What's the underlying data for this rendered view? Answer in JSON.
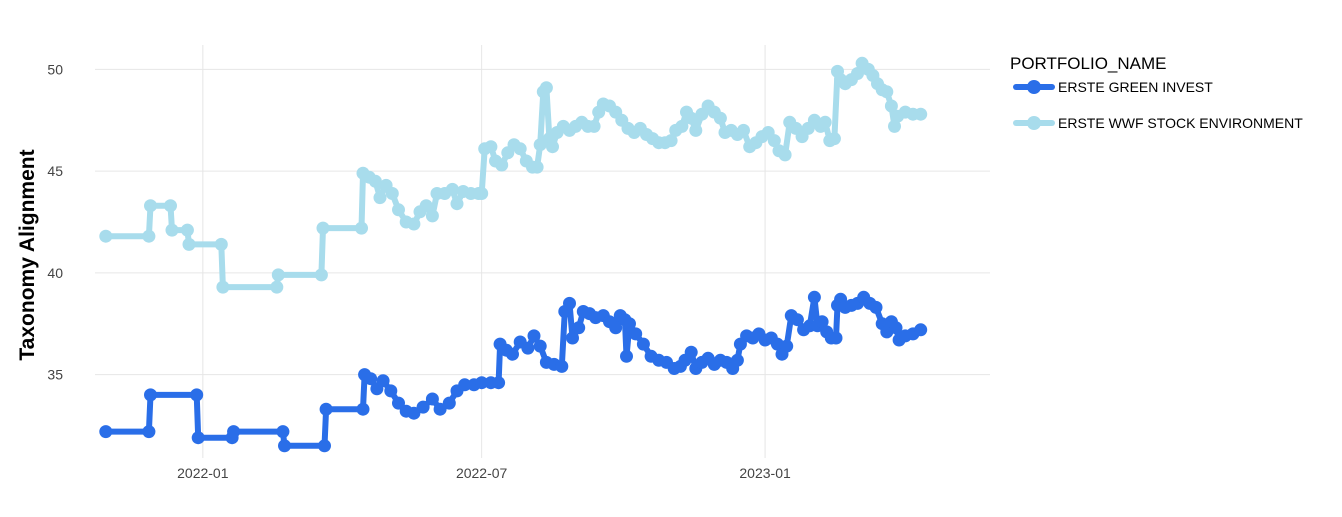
{
  "chart_data": {
    "type": "line",
    "title": "",
    "xlabel": "",
    "ylabel": "Taxonomy Alignment",
    "legend_title": "PORTFOLIO_NAME",
    "legend_position": "right",
    "grid": true,
    "ylim": [
      30.9,
      51.2
    ],
    "xlim": [
      "2021-10-23",
      "2023-05-27"
    ],
    "x_ticks": [
      {
        "label": "2022-01",
        "date": "2022-01-01"
      },
      {
        "label": "2022-07",
        "date": "2022-07-01"
      },
      {
        "label": "2023-01",
        "date": "2023-01-01"
      }
    ],
    "y_ticks": [
      35,
      40,
      45,
      50
    ],
    "series": [
      {
        "name": "ERSTE GREEN INVEST",
        "color": "#2a6ee8",
        "points": [
          [
            "2021-10-30",
            32.2
          ],
          [
            "2021-11-27",
            32.2
          ],
          [
            "2021-11-28",
            34.0
          ],
          [
            "2021-12-28",
            34.0
          ],
          [
            "2021-12-29",
            31.9
          ],
          [
            "2022-01-20",
            31.9
          ],
          [
            "2022-01-21",
            32.2
          ],
          [
            "2022-02-22",
            32.2
          ],
          [
            "2022-02-23",
            31.5
          ],
          [
            "2022-03-21",
            31.5
          ],
          [
            "2022-03-22",
            33.3
          ],
          [
            "2022-04-15",
            33.3
          ],
          [
            "2022-04-16",
            35.0
          ],
          [
            "2022-04-20",
            34.8
          ],
          [
            "2022-04-24",
            34.3
          ],
          [
            "2022-04-28",
            34.7
          ],
          [
            "2022-05-03",
            34.2
          ],
          [
            "2022-05-08",
            33.6
          ],
          [
            "2022-05-13",
            33.2
          ],
          [
            "2022-05-18",
            33.1
          ],
          [
            "2022-05-24",
            33.4
          ],
          [
            "2022-05-30",
            33.8
          ],
          [
            "2022-06-04",
            33.3
          ],
          [
            "2022-06-10",
            33.6
          ],
          [
            "2022-06-15",
            34.2
          ],
          [
            "2022-06-20",
            34.5
          ],
          [
            "2022-06-26",
            34.5
          ],
          [
            "2022-07-01",
            34.6
          ],
          [
            "2022-07-07",
            34.6
          ],
          [
            "2022-07-12",
            34.6
          ],
          [
            "2022-07-13",
            36.5
          ],
          [
            "2022-07-17",
            36.2
          ],
          [
            "2022-07-21",
            36.0
          ],
          [
            "2022-07-26",
            36.6
          ],
          [
            "2022-07-31",
            36.3
          ],
          [
            "2022-08-04",
            36.9
          ],
          [
            "2022-08-08",
            36.4
          ],
          [
            "2022-08-12",
            35.6
          ],
          [
            "2022-08-17",
            35.5
          ],
          [
            "2022-08-22",
            35.4
          ],
          [
            "2022-08-24",
            38.1
          ],
          [
            "2022-08-27",
            38.5
          ],
          [
            "2022-08-29",
            36.8
          ],
          [
            "2022-09-02",
            37.3
          ],
          [
            "2022-09-05",
            38.1
          ],
          [
            "2022-09-09",
            38.0
          ],
          [
            "2022-09-13",
            37.8
          ],
          [
            "2022-09-18",
            37.9
          ],
          [
            "2022-09-22",
            37.6
          ],
          [
            "2022-09-26",
            37.3
          ],
          [
            "2022-09-29",
            37.9
          ],
          [
            "2022-10-02",
            37.7
          ],
          [
            "2022-10-03",
            35.9
          ],
          [
            "2022-10-05",
            37.5
          ],
          [
            "2022-10-09",
            37.0
          ],
          [
            "2022-10-14",
            36.5
          ],
          [
            "2022-10-19",
            35.9
          ],
          [
            "2022-10-24",
            35.7
          ],
          [
            "2022-10-29",
            35.6
          ],
          [
            "2022-11-03",
            35.3
          ],
          [
            "2022-11-07",
            35.4
          ],
          [
            "2022-11-10",
            35.7
          ],
          [
            "2022-11-14",
            36.1
          ],
          [
            "2022-11-17",
            35.3
          ],
          [
            "2022-11-21",
            35.6
          ],
          [
            "2022-11-25",
            35.8
          ],
          [
            "2022-11-29",
            35.5
          ],
          [
            "2022-12-03",
            35.7
          ],
          [
            "2022-12-07",
            35.6
          ],
          [
            "2022-12-11",
            35.3
          ],
          [
            "2022-12-14",
            35.7
          ],
          [
            "2022-12-16",
            36.5
          ],
          [
            "2022-12-20",
            36.9
          ],
          [
            "2022-12-24",
            36.8
          ],
          [
            "2022-12-28",
            37.0
          ],
          [
            "2023-01-01",
            36.7
          ],
          [
            "2023-01-05",
            36.8
          ],
          [
            "2023-01-09",
            36.5
          ],
          [
            "2023-01-12",
            36.0
          ],
          [
            "2023-01-15",
            36.4
          ],
          [
            "2023-01-18",
            37.9
          ],
          [
            "2023-01-22",
            37.7
          ],
          [
            "2023-01-26",
            37.2
          ],
          [
            "2023-01-30",
            37.4
          ],
          [
            "2023-02-02",
            38.8
          ],
          [
            "2023-02-04",
            37.4
          ],
          [
            "2023-02-07",
            37.6
          ],
          [
            "2023-02-10",
            37.1
          ],
          [
            "2023-02-13",
            36.8
          ],
          [
            "2023-02-16",
            36.8
          ],
          [
            "2023-02-17",
            38.4
          ],
          [
            "2023-02-19",
            38.7
          ],
          [
            "2023-02-22",
            38.3
          ],
          [
            "2023-02-26",
            38.4
          ],
          [
            "2023-03-02",
            38.5
          ],
          [
            "2023-03-06",
            38.8
          ],
          [
            "2023-03-10",
            38.5
          ],
          [
            "2023-03-14",
            38.3
          ],
          [
            "2023-03-18",
            37.5
          ],
          [
            "2023-03-21",
            37.1
          ],
          [
            "2023-03-24",
            37.6
          ],
          [
            "2023-03-27",
            37.3
          ],
          [
            "2023-03-29",
            36.7
          ],
          [
            "2023-04-02",
            36.9
          ],
          [
            "2023-04-07",
            37.0
          ],
          [
            "2023-04-12",
            37.2
          ]
        ]
      },
      {
        "name": "ERSTE WWF STOCK ENVIRONMENT",
        "color": "#a8dcec",
        "points": [
          [
            "2021-10-30",
            41.8
          ],
          [
            "2021-11-27",
            41.8
          ],
          [
            "2021-11-28",
            43.3
          ],
          [
            "2021-12-11",
            43.3
          ],
          [
            "2021-12-12",
            42.1
          ],
          [
            "2021-12-22",
            42.1
          ],
          [
            "2021-12-23",
            41.4
          ],
          [
            "2022-01-13",
            41.4
          ],
          [
            "2022-01-14",
            39.3
          ],
          [
            "2022-02-18",
            39.3
          ],
          [
            "2022-02-19",
            39.9
          ],
          [
            "2022-03-19",
            39.9
          ],
          [
            "2022-03-20",
            42.2
          ],
          [
            "2022-04-14",
            42.2
          ],
          [
            "2022-04-15",
            44.9
          ],
          [
            "2022-04-19",
            44.7
          ],
          [
            "2022-04-23",
            44.5
          ],
          [
            "2022-04-26",
            43.7
          ],
          [
            "2022-04-30",
            44.3
          ],
          [
            "2022-05-04",
            43.9
          ],
          [
            "2022-05-08",
            43.1
          ],
          [
            "2022-05-13",
            42.5
          ],
          [
            "2022-05-18",
            42.4
          ],
          [
            "2022-05-22",
            43.0
          ],
          [
            "2022-05-26",
            43.3
          ],
          [
            "2022-05-30",
            42.8
          ],
          [
            "2022-06-02",
            43.9
          ],
          [
            "2022-06-07",
            43.9
          ],
          [
            "2022-06-12",
            44.1
          ],
          [
            "2022-06-15",
            43.4
          ],
          [
            "2022-06-19",
            44.0
          ],
          [
            "2022-06-24",
            43.9
          ],
          [
            "2022-06-29",
            43.9
          ],
          [
            "2022-07-01",
            43.9
          ],
          [
            "2022-07-03",
            46.1
          ],
          [
            "2022-07-07",
            46.2
          ],
          [
            "2022-07-10",
            45.5
          ],
          [
            "2022-07-14",
            45.3
          ],
          [
            "2022-07-18",
            45.9
          ],
          [
            "2022-07-22",
            46.3
          ],
          [
            "2022-07-26",
            46.1
          ],
          [
            "2022-07-30",
            45.5
          ],
          [
            "2022-08-03",
            45.2
          ],
          [
            "2022-08-06",
            45.2
          ],
          [
            "2022-08-08",
            46.3
          ],
          [
            "2022-08-10",
            48.9
          ],
          [
            "2022-08-12",
            49.1
          ],
          [
            "2022-08-14",
            46.6
          ],
          [
            "2022-08-16",
            46.2
          ],
          [
            "2022-08-19",
            46.9
          ],
          [
            "2022-08-23",
            47.2
          ],
          [
            "2022-08-27",
            47.0
          ],
          [
            "2022-08-31",
            47.2
          ],
          [
            "2022-09-04",
            47.4
          ],
          [
            "2022-09-08",
            47.2
          ],
          [
            "2022-09-12",
            47.2
          ],
          [
            "2022-09-15",
            47.9
          ],
          [
            "2022-09-18",
            48.3
          ],
          [
            "2022-09-22",
            48.2
          ],
          [
            "2022-09-26",
            47.9
          ],
          [
            "2022-09-30",
            47.5
          ],
          [
            "2022-10-04",
            47.1
          ],
          [
            "2022-10-08",
            46.9
          ],
          [
            "2022-10-12",
            47.1
          ],
          [
            "2022-10-16",
            46.8
          ],
          [
            "2022-10-20",
            46.6
          ],
          [
            "2022-10-24",
            46.4
          ],
          [
            "2022-10-28",
            46.4
          ],
          [
            "2022-11-01",
            46.5
          ],
          [
            "2022-11-04",
            47.0
          ],
          [
            "2022-11-08",
            47.2
          ],
          [
            "2022-11-11",
            47.9
          ],
          [
            "2022-11-14",
            47.6
          ],
          [
            "2022-11-17",
            47.0
          ],
          [
            "2022-11-21",
            47.8
          ],
          [
            "2022-11-25",
            48.2
          ],
          [
            "2022-11-29",
            47.9
          ],
          [
            "2022-12-03",
            47.6
          ],
          [
            "2022-12-06",
            46.9
          ],
          [
            "2022-12-10",
            47.0
          ],
          [
            "2022-12-14",
            46.8
          ],
          [
            "2022-12-18",
            47.0
          ],
          [
            "2022-12-22",
            46.2
          ],
          [
            "2022-12-26",
            46.4
          ],
          [
            "2022-12-30",
            46.7
          ],
          [
            "2023-01-03",
            46.9
          ],
          [
            "2023-01-07",
            46.5
          ],
          [
            "2023-01-10",
            46.0
          ],
          [
            "2023-01-14",
            45.8
          ],
          [
            "2023-01-17",
            47.4
          ],
          [
            "2023-01-21",
            47.1
          ],
          [
            "2023-01-25",
            46.7
          ],
          [
            "2023-01-29",
            47.1
          ],
          [
            "2023-02-02",
            47.5
          ],
          [
            "2023-02-06",
            47.2
          ],
          [
            "2023-02-09",
            47.4
          ],
          [
            "2023-02-12",
            46.5
          ],
          [
            "2023-02-15",
            46.6
          ],
          [
            "2023-02-17",
            49.9
          ],
          [
            "2023-02-19",
            49.5
          ],
          [
            "2023-02-22",
            49.3
          ],
          [
            "2023-02-26",
            49.5
          ],
          [
            "2023-03-02",
            49.8
          ],
          [
            "2023-03-05",
            50.3
          ],
          [
            "2023-03-09",
            50.0
          ],
          [
            "2023-03-12",
            49.7
          ],
          [
            "2023-03-15",
            49.3
          ],
          [
            "2023-03-18",
            49.0
          ],
          [
            "2023-03-21",
            48.9
          ],
          [
            "2023-03-24",
            48.2
          ],
          [
            "2023-03-26",
            47.2
          ],
          [
            "2023-03-28",
            47.7
          ],
          [
            "2023-04-02",
            47.9
          ],
          [
            "2023-04-07",
            47.8
          ],
          [
            "2023-04-12",
            47.8
          ]
        ]
      }
    ]
  }
}
